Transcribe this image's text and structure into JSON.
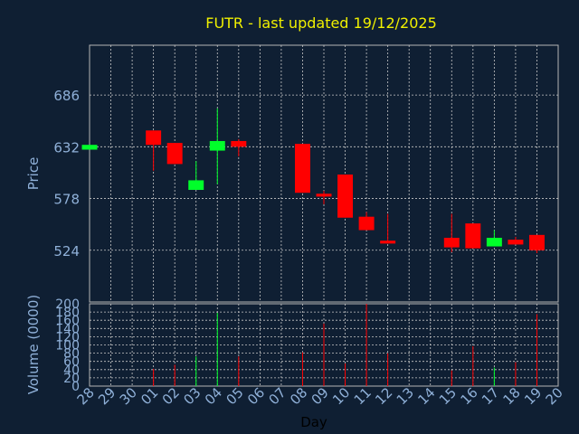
{
  "chart_data": [
    {
      "type": "candlestick",
      "title": "FUTR - last updated 19/12/2025",
      "ylabel": "Price",
      "ylim": [
        470,
        738
      ],
      "yticks": [
        524,
        578,
        632,
        686
      ],
      "colors": {
        "up": "#00ff2a",
        "down": "#ff0000",
        "grid": "#c8c8c8",
        "title": "#f0f000",
        "label": "#8fb0d8",
        "background": "#0f1f33"
      },
      "x": [
        "28",
        "29",
        "30",
        "01",
        "02",
        "03",
        "04",
        "05",
        "06",
        "07",
        "08",
        "09",
        "10",
        "11",
        "12",
        "13",
        "14",
        "15",
        "16",
        "17",
        "18",
        "19",
        "20"
      ],
      "candles": [
        {
          "day": "28",
          "open": 629,
          "close": 634,
          "high": 634,
          "low": 629
        },
        {
          "day": "01",
          "open": 649,
          "close": 634,
          "high": 649,
          "low": 607
        },
        {
          "day": "02",
          "open": 636,
          "close": 614,
          "high": 636,
          "low": 614
        },
        {
          "day": "03",
          "open": 587,
          "close": 597,
          "high": 617,
          "low": 587
        },
        {
          "day": "04",
          "open": 628,
          "close": 638,
          "high": 672,
          "low": 593
        },
        {
          "day": "05",
          "open": 638,
          "close": 632,
          "high": 640,
          "low": 622
        },
        {
          "day": "08",
          "open": 635,
          "close": 584,
          "high": 635,
          "low": 584
        },
        {
          "day": "09",
          "open": 583,
          "close": 580,
          "high": 586,
          "low": 572
        },
        {
          "day": "10",
          "open": 603,
          "close": 558,
          "high": 603,
          "low": 558
        },
        {
          "day": "11",
          "open": 559,
          "close": 545,
          "high": 564,
          "low": 545
        },
        {
          "day": "12",
          "open": 534,
          "close": 531,
          "high": 562,
          "low": 531
        },
        {
          "day": "15",
          "open": 537,
          "close": 527,
          "high": 562,
          "low": 522
        },
        {
          "day": "16",
          "open": 552,
          "close": 526,
          "high": 552,
          "low": 526
        },
        {
          "day": "17",
          "open": 528,
          "close": 537,
          "high": 545,
          "low": 528
        },
        {
          "day": "18",
          "open": 535,
          "close": 530,
          "high": 538,
          "low": 530
        },
        {
          "day": "19",
          "open": 540,
          "close": 524,
          "high": 540,
          "low": 521
        }
      ]
    },
    {
      "type": "bar",
      "ylabel": "Volume (0000)",
      "xlabel": "Day",
      "ylim": [
        0,
        200
      ],
      "yticks": [
        0,
        20,
        40,
        60,
        80,
        100,
        120,
        140,
        160,
        180,
        200
      ],
      "categories": [
        "01",
        "02",
        "03",
        "04",
        "05",
        "08",
        "09",
        "10",
        "11",
        "12",
        "15",
        "16",
        "17",
        "18",
        "19"
      ],
      "values": [
        42,
        52,
        72,
        178,
        72,
        82,
        152,
        55,
        200,
        80,
        38,
        97,
        45,
        58,
        175
      ],
      "directions": [
        "down",
        "down",
        "up",
        "up",
        "down",
        "down",
        "down",
        "down",
        "down",
        "down",
        "down",
        "down",
        "up",
        "down",
        "down"
      ]
    }
  ]
}
